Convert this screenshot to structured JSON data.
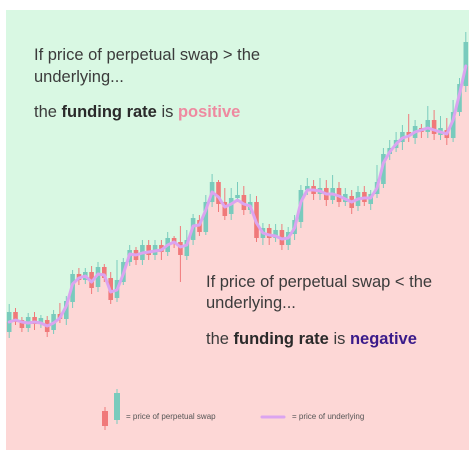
{
  "colors": {
    "positive_region": "#d9f8e3",
    "negative_region": "#fdd7d6",
    "bull_candle": "#79cbbd",
    "bear_candle": "#f0797a",
    "underlying_line": "#dba4f0",
    "positive_word": "#ee8aa0",
    "negative_word": "#3a1a8a"
  },
  "annotations": {
    "top": {
      "line1": "If price of perpetual swap > the",
      "line2": "underlying...",
      "rate_prefix": "the ",
      "rate_bold": "funding rate",
      "rate_mid": " is ",
      "rate_value": "positive"
    },
    "bottom": {
      "line1": "If price of perpetual swap < the",
      "line2": "underlying...",
      "rate_prefix": "the ",
      "rate_bold": "funding rate",
      "rate_mid": " is ",
      "rate_value": "negative"
    }
  },
  "legend": {
    "candle_label": "= price of perpetual swap",
    "line_label": "= price of underlying"
  },
  "chart_data": {
    "type": "candlestick",
    "title": "",
    "xlabel": "",
    "ylabel": "",
    "ylim": [
      0,
      440
    ],
    "series": [
      {
        "name": "price of perpetual swap",
        "ohlc": [
          [
            118,
            138,
            112,
            146
          ],
          [
            138,
            128,
            125,
            142
          ],
          [
            130,
            122,
            118,
            133
          ],
          [
            122,
            133,
            118,
            137
          ],
          [
            133,
            126,
            120,
            138
          ],
          [
            126,
            132,
            122,
            135
          ],
          [
            130,
            118,
            113,
            134
          ],
          [
            120,
            136,
            116,
            140
          ],
          [
            136,
            131,
            127,
            147
          ],
          [
            131,
            149,
            125,
            154
          ],
          [
            148,
            176,
            142,
            180
          ],
          [
            176,
            170,
            165,
            182
          ],
          [
            170,
            178,
            166,
            182
          ],
          [
            178,
            162,
            156,
            184
          ],
          [
            163,
            183,
            158,
            188
          ],
          [
            183,
            172,
            168,
            186
          ],
          [
            172,
            150,
            146,
            178
          ],
          [
            152,
            170,
            148,
            190
          ],
          [
            168,
            188,
            165,
            192
          ],
          [
            188,
            200,
            184,
            205
          ],
          [
            200,
            190,
            185,
            203
          ],
          [
            190,
            205,
            185,
            210
          ],
          [
            205,
            195,
            190,
            210
          ],
          [
            195,
            205,
            190,
            210
          ],
          [
            205,
            198,
            190,
            210
          ],
          [
            198,
            212,
            194,
            218
          ],
          [
            212,
            208,
            202,
            214
          ],
          [
            208,
            195,
            168,
            224
          ],
          [
            194,
            210,
            190,
            220
          ],
          [
            210,
            232,
            205,
            236
          ],
          [
            230,
            218,
            214,
            235
          ],
          [
            218,
            248,
            215,
            255
          ],
          [
            248,
            268,
            243,
            276
          ],
          [
            268,
            246,
            238,
            270
          ],
          [
            248,
            234,
            230,
            262
          ],
          [
            236,
            252,
            230,
            262
          ],
          [
            252,
            255,
            248,
            268
          ],
          [
            255,
            240,
            235,
            264
          ],
          [
            240,
            248,
            236,
            256
          ],
          [
            248,
            212,
            208,
            254
          ],
          [
            212,
            222,
            205,
            227
          ],
          [
            222,
            212,
            205,
            226
          ],
          [
            212,
            220,
            208,
            226
          ],
          [
            220,
            205,
            200,
            226
          ],
          [
            205,
            218,
            200,
            223
          ],
          [
            216,
            230,
            210,
            235
          ],
          [
            228,
            260,
            222,
            265
          ],
          [
            260,
            264,
            255,
            272
          ],
          [
            264,
            256,
            250,
            270
          ],
          [
            256,
            262,
            250,
            272
          ],
          [
            262,
            250,
            244,
            270
          ],
          [
            250,
            262,
            246,
            275
          ],
          [
            262,
            248,
            243,
            268
          ],
          [
            248,
            256,
            244,
            262
          ],
          [
            254,
            242,
            236,
            260
          ],
          [
            244,
            258,
            239,
            264
          ],
          [
            258,
            248,
            244,
            264
          ],
          [
            246,
            256,
            240,
            260
          ],
          [
            256,
            268,
            252,
            285
          ],
          [
            266,
            296,
            262,
            302
          ],
          [
            296,
            302,
            290,
            310
          ],
          [
            302,
            310,
            298,
            318
          ],
          [
            308,
            318,
            300,
            325
          ],
          [
            318,
            315,
            308,
            336
          ],
          [
            312,
            324,
            306,
            330
          ],
          [
            322,
            318,
            312,
            326
          ],
          [
            318,
            330,
            312,
            344
          ],
          [
            330,
            316,
            310,
            340
          ],
          [
            315,
            322,
            310,
            334
          ],
          [
            320,
            312,
            305,
            332
          ],
          [
            312,
            338,
            308,
            350
          ],
          [
            338,
            366,
            334,
            372
          ],
          [
            364,
            408,
            358,
            418
          ]
        ]
      },
      {
        "name": "price of underlying",
        "values": [
          128,
          130,
          128,
          127,
          128,
          127,
          124,
          127,
          132,
          144,
          166,
          172,
          174,
          168,
          176,
          175,
          158,
          160,
          176,
          196,
          195,
          197,
          198,
          199,
          200,
          205,
          208,
          203,
          205,
          224,
          225,
          240,
          258,
          253,
          243,
          246,
          250,
          246,
          244,
          227,
          217,
          215,
          214,
          211,
          212,
          222,
          248,
          260,
          260,
          259,
          256,
          256,
          254,
          251,
          248,
          251,
          252,
          252,
          262,
          287,
          298,
          306,
          312,
          314,
          318,
          320,
          322,
          320,
          318,
          316,
          330,
          356,
          384
        ]
      }
    ]
  }
}
